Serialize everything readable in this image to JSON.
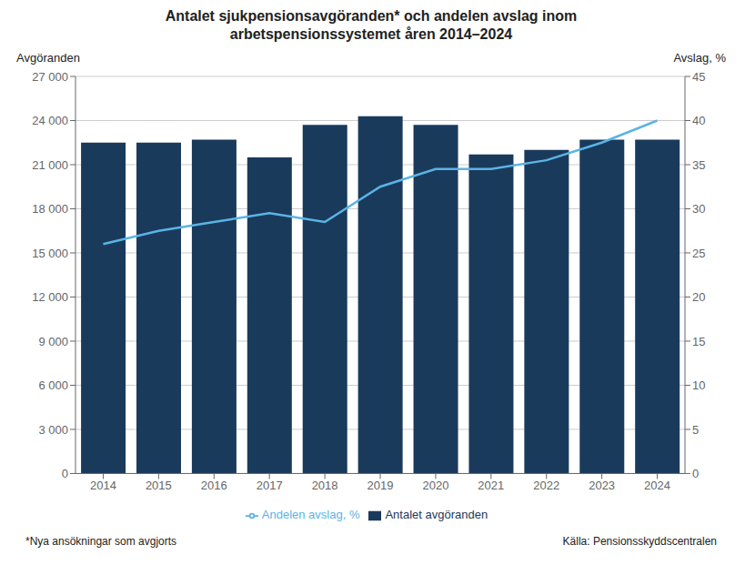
{
  "chart_data": {
    "type": "bar",
    "title": "Antalet sjukpensionsavgöranden* och andelen avslag inom\narbetspensionssystemet åren 2014–2024",
    "ylabel": "Avgöranden",
    "y2label": "Avslag, %",
    "categories": [
      "2014",
      "2015",
      "2016",
      "2017",
      "2018",
      "2019",
      "2020",
      "2021",
      "2022",
      "2023",
      "2024"
    ],
    "series": [
      {
        "name": "Antalet avgöranden",
        "type": "bar",
        "color": "#1a3a5c",
        "values": [
          22500,
          22500,
          22700,
          21500,
          23700,
          24300,
          23700,
          21700,
          22000,
          22700,
          22700
        ]
      },
      {
        "name": "Andelen avslag, %",
        "type": "line",
        "color": "#5ab4e5",
        "axis": "y2",
        "values": [
          26.0,
          27.5,
          28.5,
          29.5,
          28.5,
          32.5,
          34.5,
          34.5,
          35.5,
          37.5,
          40.0
        ]
      }
    ],
    "ylim": [
      0,
      27000
    ],
    "yticks": [
      0,
      {
        "value": 3000,
        "label": "3 000"
      },
      {
        "value": 6000,
        "label": "6 000"
      },
      {
        "value": 9000,
        "label": "9 000"
      },
      {
        "value": 12000,
        "label": "12 000"
      },
      {
        "value": 15000,
        "label": "15 000"
      },
      {
        "value": 18000,
        "label": "18 000"
      },
      {
        "value": 21000,
        "label": "21 000"
      },
      {
        "value": 24000,
        "label": "24 000"
      },
      {
        "value": 27000,
        "label": "27 000"
      }
    ],
    "y2lim": [
      0,
      45
    ],
    "y2ticks": [
      0,
      5,
      10,
      15,
      20,
      25,
      30,
      35,
      40,
      45
    ],
    "grid": true,
    "legend": "bottom",
    "annotations": [
      "*Nya ansökningar som avgjorts",
      "Källa: Pensionsskyddscentralen"
    ]
  }
}
